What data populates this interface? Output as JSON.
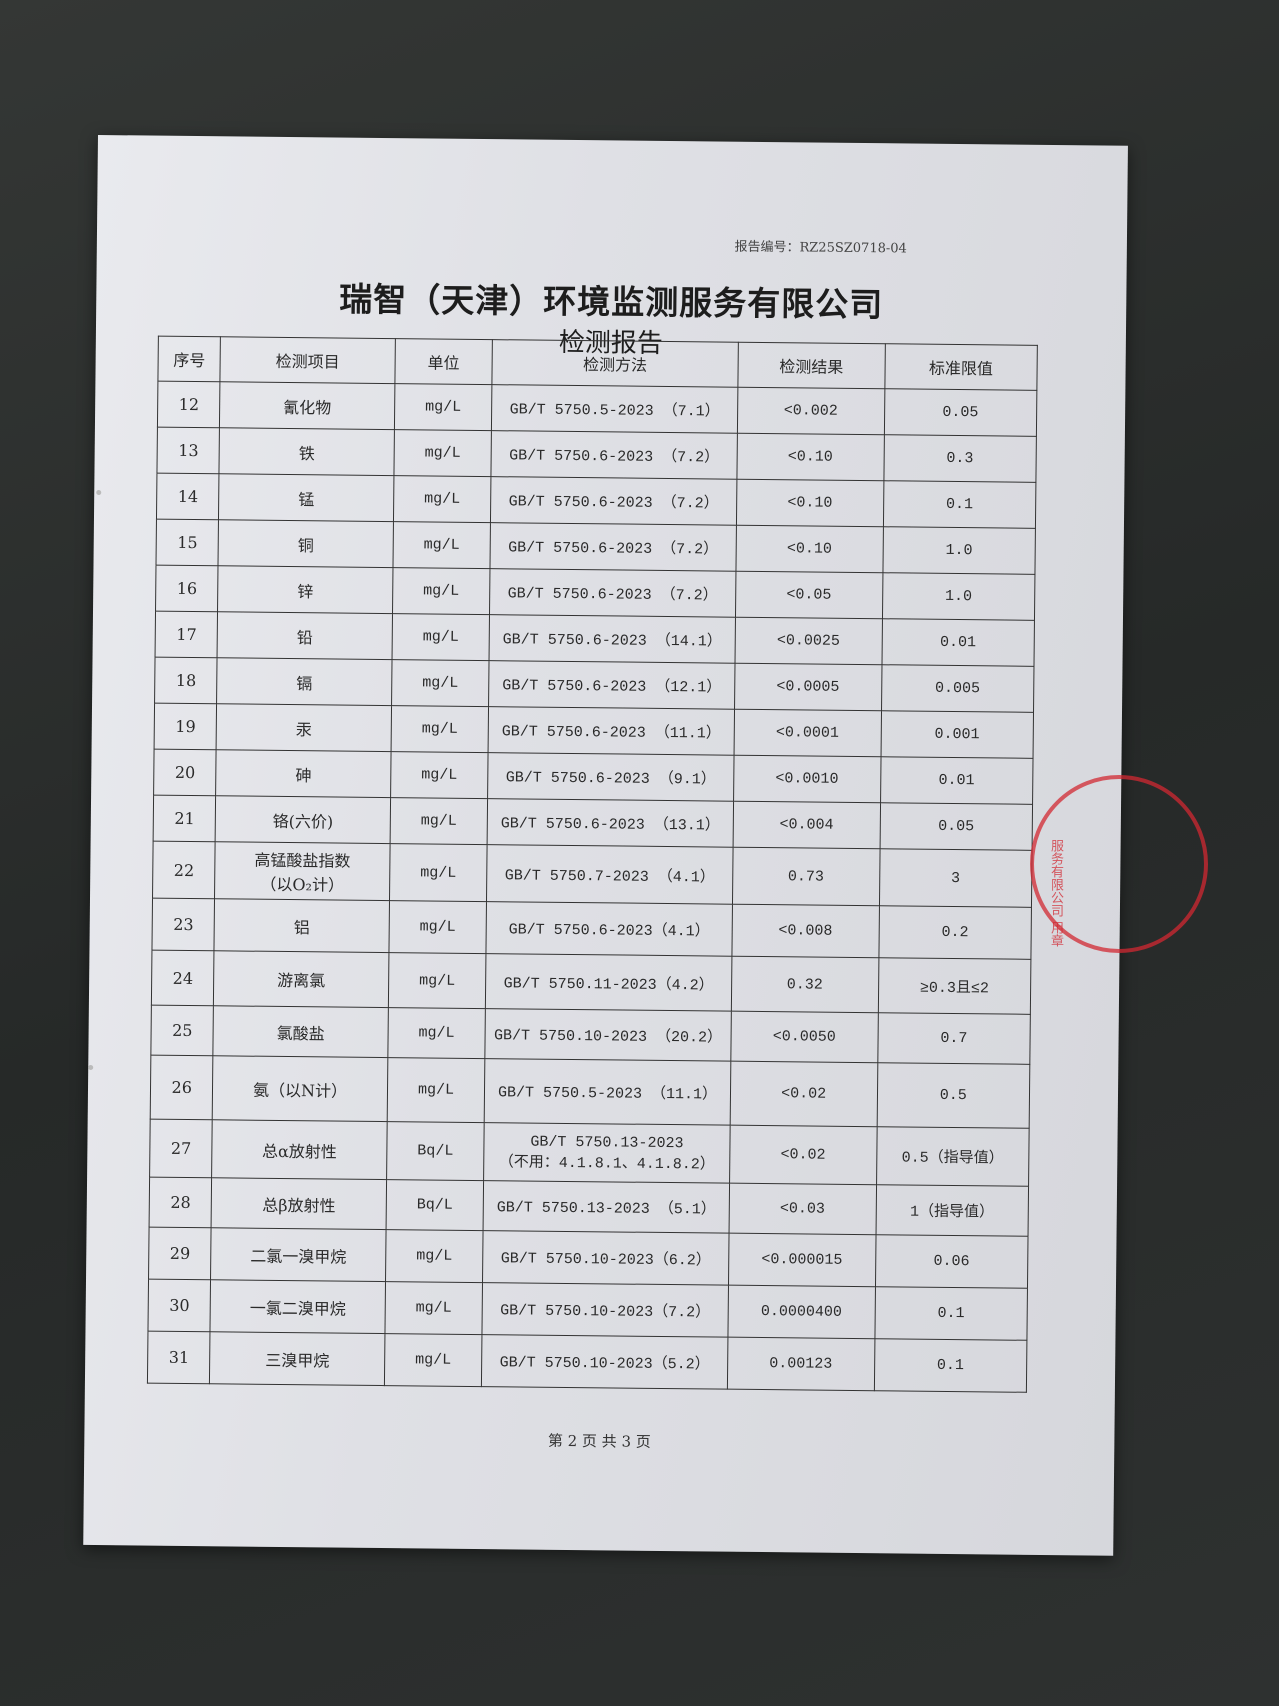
{
  "header": {
    "report_no": "报告编号：RZ25SZ0718-04",
    "company": "瑞智（天津）环境监测服务有限公司",
    "title": "检测报告"
  },
  "columns": [
    "序号",
    "检测项目",
    "单位",
    "检测方法",
    "检测结果",
    "标准限值"
  ],
  "rows": [
    {
      "no": "12",
      "item": "氰化物",
      "unit": "mg/L",
      "method": "GB/T 5750.5-2023 （7.1）",
      "result": "<0.002",
      "limit": "0.05"
    },
    {
      "no": "13",
      "item": "铁",
      "unit": "mg/L",
      "method": "GB/T 5750.6-2023 （7.2）",
      "result": "<0.10",
      "limit": "0.3"
    },
    {
      "no": "14",
      "item": "锰",
      "unit": "mg/L",
      "method": "GB/T 5750.6-2023 （7.2）",
      "result": "<0.10",
      "limit": "0.1"
    },
    {
      "no": "15",
      "item": "铜",
      "unit": "mg/L",
      "method": "GB/T 5750.6-2023 （7.2）",
      "result": "<0.10",
      "limit": "1.0"
    },
    {
      "no": "16",
      "item": "锌",
      "unit": "mg/L",
      "method": "GB/T 5750.6-2023 （7.2）",
      "result": "<0.05",
      "limit": "1.0"
    },
    {
      "no": "17",
      "item": "铅",
      "unit": "mg/L",
      "method": "GB/T 5750.6-2023 （14.1）",
      "result": "<0.0025",
      "limit": "0.01"
    },
    {
      "no": "18",
      "item": "镉",
      "unit": "mg/L",
      "method": "GB/T 5750.6-2023 （12.1）",
      "result": "<0.0005",
      "limit": "0.005"
    },
    {
      "no": "19",
      "item": "汞",
      "unit": "mg/L",
      "method": "GB/T 5750.6-2023 （11.1）",
      "result": "<0.0001",
      "limit": "0.001"
    },
    {
      "no": "20",
      "item": "砷",
      "unit": "mg/L",
      "method": "GB/T 5750.6-2023 （9.1）",
      "result": "<0.0010",
      "limit": "0.01"
    },
    {
      "no": "21",
      "item": "铬(六价)",
      "unit": "mg/L",
      "method": "GB/T 5750.6-2023 （13.1）",
      "result": "<0.004",
      "limit": "0.05"
    },
    {
      "no": "22",
      "item": "高锰酸盐指数",
      "item2": "（以O₂计）",
      "unit": "mg/L",
      "method": "GB/T 5750.7-2023 （4.1）",
      "result": "0.73",
      "limit": "3"
    },
    {
      "no": "23",
      "item": "铝",
      "unit": "mg/L",
      "method": "GB/T 5750.6-2023（4.1）",
      "result": "<0.008",
      "limit": "0.2"
    },
    {
      "no": "24",
      "item": "游离氯",
      "unit": "mg/L",
      "method": "GB/T 5750.11-2023（4.2）",
      "result": "0.32",
      "limit": "≥0.3且≤2"
    },
    {
      "no": "25",
      "item": "氯酸盐",
      "unit": "mg/L",
      "method": "GB/T 5750.10-2023 （20.2）",
      "result": "<0.0050",
      "limit": "0.7"
    },
    {
      "no": "26",
      "item": "氨（以N计）",
      "unit": "mg/L",
      "method": "GB/T 5750.5-2023 （11.1）",
      "result": "<0.02",
      "limit": "0.5"
    },
    {
      "no": "27",
      "item": "总α放射性",
      "unit": "Bq/L",
      "method": "GB/T 5750.13-2023",
      "method2": "（不用：4.1.8.1、4.1.8.2）",
      "result": "<0.02",
      "limit": "0.5（指导值）"
    },
    {
      "no": "28",
      "item": "总β放射性",
      "unit": "Bq/L",
      "method": "GB/T 5750.13-2023 （5.1）",
      "result": "<0.03",
      "limit": "1（指导值）"
    },
    {
      "no": "29",
      "item": "二氯一溴甲烷",
      "unit": "mg/L",
      "method": "GB/T 5750.10-2023（6.2）",
      "result": "<0.000015",
      "limit": "0.06"
    },
    {
      "no": "30",
      "item": "一氯二溴甲烷",
      "unit": "mg/L",
      "method": "GB/T 5750.10-2023（7.2）",
      "result": "0.0000400",
      "limit": "0.1"
    },
    {
      "no": "31",
      "item": "三溴甲烷",
      "unit": "mg/L",
      "method": "GB/T 5750.10-2023（5.2）",
      "result": "0.00123",
      "limit": "0.1"
    }
  ],
  "footer": {
    "page": "第 2 页 共 3 页"
  },
  "stamp": {
    "text": "服务有限公司 用章 923",
    "color": "#d22832"
  }
}
